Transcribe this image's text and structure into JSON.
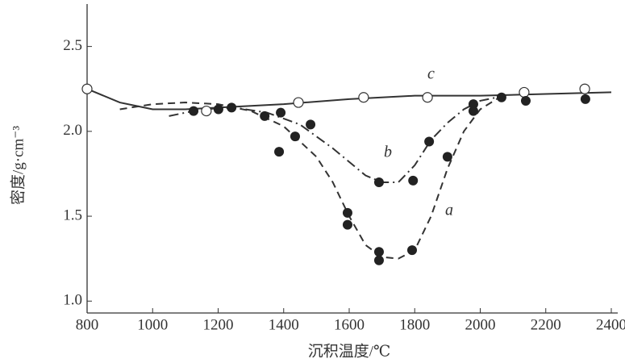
{
  "chart_data": {
    "type": "line",
    "x_label": "沉积温度/℃",
    "y_label": "密度/g·cm⁻³",
    "xlim": [
      800,
      2400
    ],
    "xticks": [
      800,
      1000,
      1200,
      1400,
      1600,
      1800,
      2000,
      2200,
      2400
    ],
    "ylim": [
      0.93,
      2.75
    ],
    "yticks": [
      {
        "value": 1.0,
        "label": "1.0"
      },
      {
        "value": 1.5,
        "label": "1.5"
      },
      {
        "value": 2.0,
        "label": "2.0"
      },
      {
        "value": 2.5,
        "label": "2.5"
      }
    ],
    "series": [
      {
        "name": "a",
        "color": "#333",
        "style": "dashed",
        "x": [
          900,
          1000,
          1100,
          1200,
          1300,
          1400,
          1500,
          1550,
          1600,
          1650,
          1700,
          1750,
          1800,
          1850,
          1900,
          1950,
          2000,
          2050,
          2080
        ],
        "values": [
          2.13,
          2.16,
          2.17,
          2.16,
          2.12,
          2.03,
          1.85,
          1.7,
          1.5,
          1.33,
          1.26,
          1.25,
          1.3,
          1.5,
          1.78,
          2.0,
          2.13,
          2.19,
          2.21
        ]
      },
      {
        "name": "b",
        "color": "#333",
        "style": "dashdot",
        "x": [
          1050,
          1150,
          1250,
          1350,
          1450,
          1550,
          1650,
          1700,
          1750,
          1800,
          1850,
          1900,
          1950,
          2000,
          2050
        ],
        "values": [
          2.09,
          2.13,
          2.14,
          2.11,
          2.04,
          1.9,
          1.74,
          1.7,
          1.7,
          1.8,
          1.95,
          2.05,
          2.13,
          2.18,
          2.2
        ]
      },
      {
        "name": "c",
        "color": "#333",
        "style": "solid",
        "x": [
          800,
          900,
          1000,
          1100,
          1200,
          1400,
          1600,
          1800,
          2000,
          2200,
          2400
        ],
        "values": [
          2.25,
          2.17,
          2.13,
          2.13,
          2.14,
          2.16,
          2.19,
          2.21,
          2.21,
          2.22,
          2.23
        ]
      }
    ],
    "open_points": {
      "x": [
        800,
        1164,
        1445,
        1644,
        1839,
        2134,
        2319
      ],
      "values": [
        2.25,
        2.12,
        2.17,
        2.2,
        2.2,
        2.23,
        2.25
      ]
    },
    "filled_points": {
      "x": [
        1125,
        1201,
        1241,
        1342,
        1391,
        1386,
        1435,
        1482,
        1595,
        1595,
        1691,
        1691,
        1691,
        1792,
        1795,
        1844,
        1900,
        1979,
        1979,
        2065,
        2139,
        2321
      ],
      "values": [
        2.12,
        2.13,
        2.14,
        2.09,
        2.11,
        1.88,
        1.97,
        2.04,
        1.52,
        1.45,
        1.7,
        1.29,
        1.24,
        1.3,
        1.71,
        1.94,
        1.85,
        2.12,
        2.16,
        2.2,
        2.18,
        2.19
      ]
    }
  }
}
